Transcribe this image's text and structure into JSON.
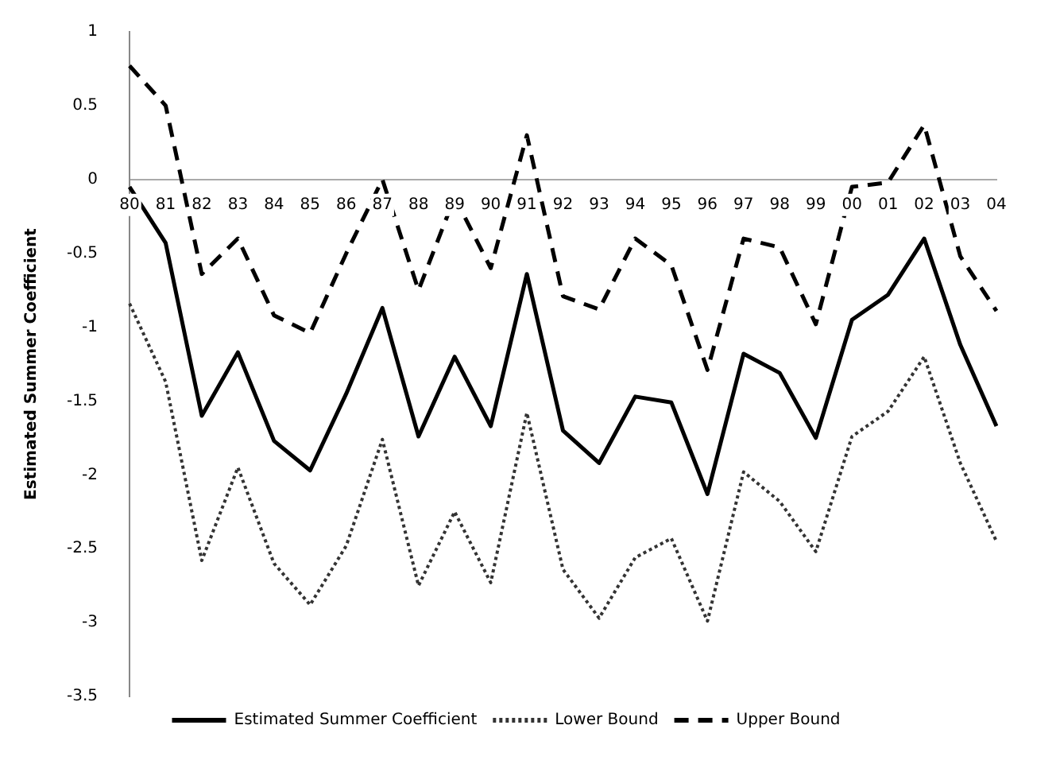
{
  "chart_data": {
    "type": "line",
    "ylabel": "Estimated Summer Coefficient",
    "categories": [
      "80",
      "81",
      "82",
      "83",
      "84",
      "85",
      "86",
      "87",
      "88",
      "89",
      "90",
      "91",
      "92",
      "93",
      "94",
      "95",
      "96",
      "97",
      "98",
      "99",
      "00",
      "01",
      "02",
      "03",
      "04"
    ],
    "series": [
      {
        "name": "Estimated Summer Coefficient",
        "color": "#000000",
        "line_style": "solid",
        "values": [
          -0.05,
          -0.43,
          -1.6,
          -1.17,
          -1.77,
          -1.97,
          -1.45,
          -0.87,
          -1.74,
          -1.2,
          -1.67,
          -0.64,
          -1.7,
          -1.92,
          -1.47,
          -1.51,
          -2.13,
          -1.18,
          -1.31,
          -1.75,
          -0.95,
          -0.78,
          -0.4,
          -1.12,
          -1.67
        ]
      },
      {
        "name": "Lower Bound",
        "color": "#333333",
        "line_style": "dotted",
        "values": [
          -0.84,
          -1.37,
          -2.58,
          -1.95,
          -2.6,
          -2.88,
          -2.48,
          -1.76,
          -2.75,
          -2.25,
          -2.73,
          -1.58,
          -2.64,
          -2.97,
          -2.56,
          -2.43,
          -2.99,
          -1.98,
          -2.18,
          -2.52,
          -1.74,
          -1.57,
          -1.2,
          -1.92,
          -2.45
        ]
      },
      {
        "name": "Upper Bound",
        "color": "#000000",
        "line_style": "dashed",
        "values": [
          0.77,
          0.5,
          -0.64,
          -0.4,
          -0.92,
          -1.04,
          -0.5,
          0.0,
          -0.75,
          -0.12,
          -0.6,
          0.3,
          -0.79,
          -0.88,
          -0.4,
          -0.58,
          -1.29,
          -0.4,
          -0.46,
          -0.98,
          -0.05,
          -0.02,
          0.37,
          -0.52,
          -0.89
        ]
      }
    ],
    "ylim": [
      -3.5,
      1
    ],
    "yticks": [
      -3.5,
      -3,
      -2.5,
      -2,
      -1.5,
      -1,
      -0.5,
      0,
      0.5,
      1
    ],
    "grid": false,
    "legend": "bottom",
    "marker": "none"
  }
}
